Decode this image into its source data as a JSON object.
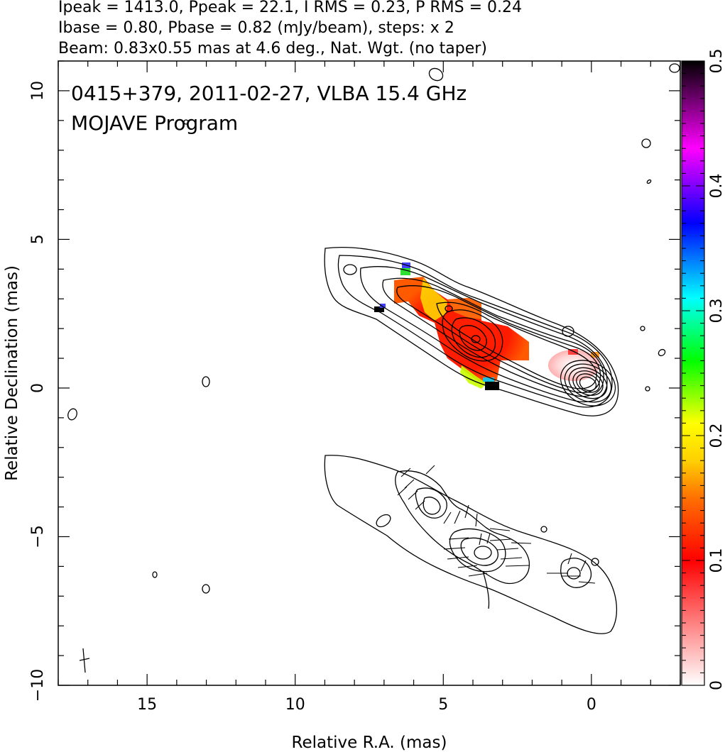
{
  "header": {
    "line1": "Ipeak = 1413.0, Ppeak = 22.1, I RMS = 0.23, P RMS = 0.24",
    "line2": "Ibase = 0.80, Pbase = 0.82 (mJy/beam), steps: x 2",
    "line3": "Beam: 0.83x0.55 mas at 4.6 deg., Nat. Wgt. (no taper)"
  },
  "plot": {
    "title": "0415+379, 2011-02-27, VLBA 15.4 GHz",
    "subtitle": "MOJAVE Program"
  },
  "chart_data": {
    "type": "contour",
    "title": "0415+379, 2011-02-27, VLBA 15.4 GHz",
    "subtitle": "MOJAVE Program",
    "xlabel": "Relative R.A. (mas)",
    "ylabel": "Relative Declination (mas)",
    "xlim": [
      18,
      -3
    ],
    "ylim": [
      -10,
      11
    ],
    "x_ticks": [
      15,
      10,
      5,
      0
    ],
    "y_ticks": [
      10,
      5,
      0,
      -5,
      -10
    ],
    "x_tick_labels": [
      "15",
      "10",
      "5",
      "0"
    ],
    "y_tick_labels": [
      "10",
      "5",
      "0",
      "−5",
      "−10"
    ],
    "colorbar": {
      "min": 0,
      "max": 0.5,
      "ticks": [
        0,
        0.1,
        0.2,
        0.3,
        0.4,
        0.5
      ],
      "tick_labels": [
        "0",
        "0.1",
        "0.2",
        "0.3",
        "0.4",
        "0.5"
      ],
      "colors": [
        "#ffffff",
        "#ff8080",
        "#ff0000",
        "#ff8000",
        "#ffff00",
        "#00ff00",
        "#00ffff",
        "#0000ff",
        "#ff00ff",
        "#000000"
      ]
    },
    "stokes_I": {
      "peak": 1413.0,
      "rms": 0.23,
      "base": 0.8,
      "core_position": [
        0.3,
        0.2
      ],
      "jet_direction_deg": 60
    },
    "polarization": {
      "peak": 22.1,
      "rms": 0.24,
      "base": 0.82,
      "regions": [
        {
          "x_range": [
            2.3,
            6.6
          ],
          "y_range": [
            0.9,
            3.6
          ],
          "frac_pol_approx": 0.12
        },
        {
          "x_range": [
            0,
            1.1
          ],
          "y_range": [
            0.7,
            1.2
          ],
          "frac_pol_approx": 0.05
        }
      ]
    },
    "contour_step": "x 2",
    "beam": {
      "major_mas": 0.83,
      "minor_mas": 0.55,
      "pa_deg": 4.6
    },
    "weighting": "Nat. Wgt. (no taper)"
  }
}
